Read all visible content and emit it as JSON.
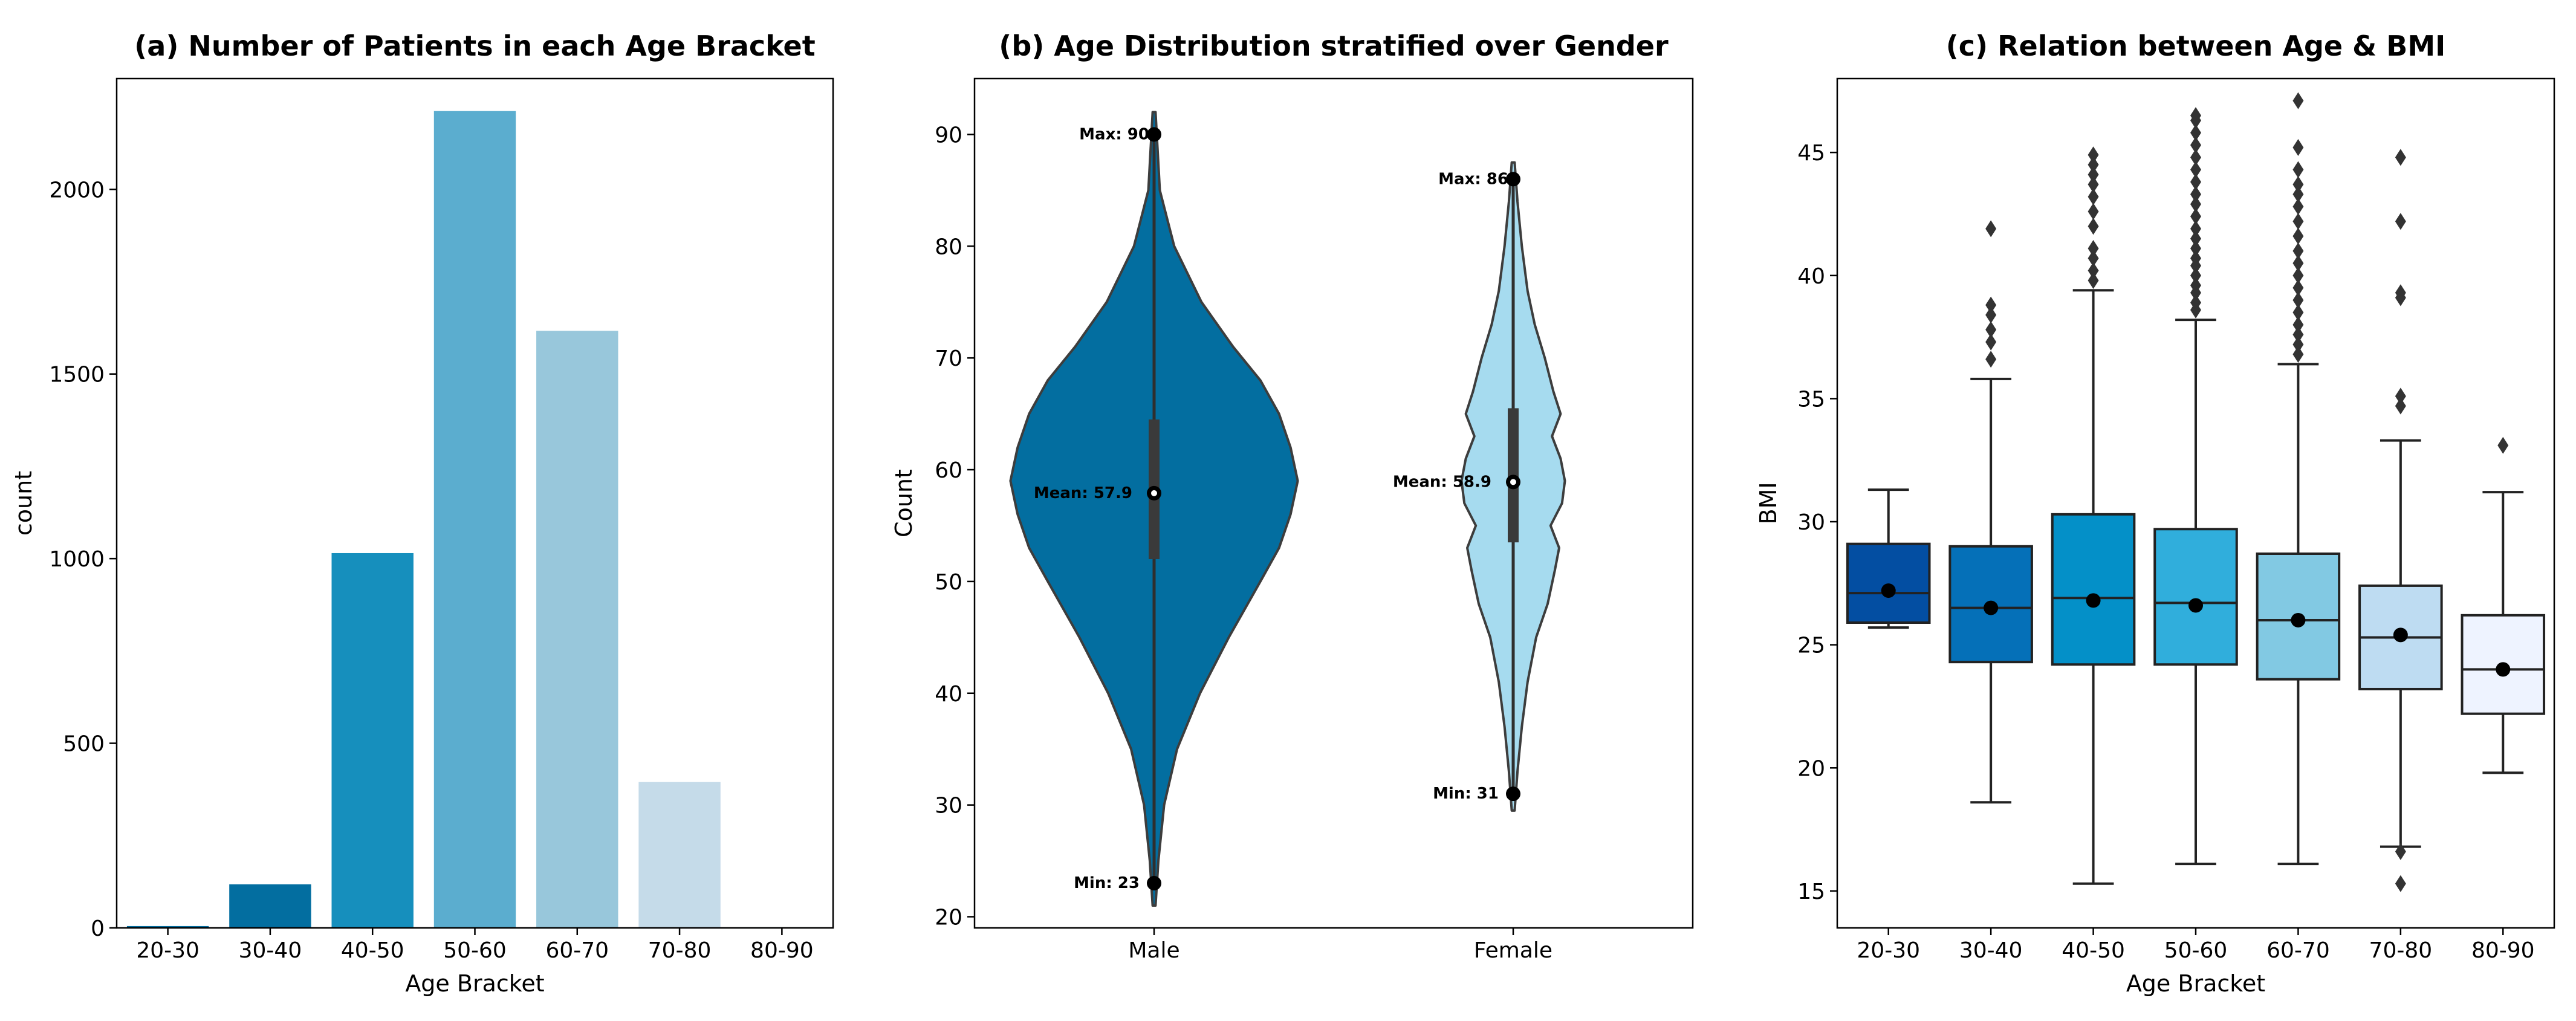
{
  "chart_data": [
    {
      "type": "bar",
      "title": "(a) Number of Patients in each Age Bracket",
      "xlabel": "Age Bracket",
      "ylabel": "count",
      "ylim": [
        0,
        2300
      ],
      "yticks": [
        0,
        500,
        1000,
        1500,
        2000
      ],
      "categories": [
        "20-30",
        "30-40",
        "40-50",
        "50-60",
        "60-70",
        "70-80",
        "80-90"
      ],
      "values": [
        5,
        118,
        1015,
        2212,
        1617,
        395,
        2
      ],
      "colors": [
        "#036ea0",
        "#036ea0",
        "#168fbd",
        "#5badcf",
        "#98c7db",
        "#c5dbe9",
        "#dde9f2"
      ]
    },
    {
      "type": "violin",
      "title": "(b) Age Distribution stratified over Gender",
      "xlabel": "",
      "ylabel": "Count",
      "ylim": [
        19,
        95
      ],
      "yticks": [
        20,
        30,
        40,
        50,
        60,
        70,
        80,
        90
      ],
      "categories": [
        "Male",
        "Female"
      ],
      "colors": [
        "#036ea0",
        "#a6dbef"
      ],
      "series": [
        {
          "name": "Male",
          "min": 23,
          "max": 90,
          "mean": 57.9,
          "median": 58,
          "q1": 52,
          "q3": 64.5,
          "min_label": "Min: 23",
          "max_label": "Max: 90",
          "mean_label": "Mean: 57.9",
          "kde_ages": [
            21,
            25,
            30,
            35,
            40,
            45,
            50,
            53,
            56,
            59,
            62,
            65,
            68,
            71,
            75,
            80,
            85,
            92
          ],
          "kde_width": [
            0.01,
            0.03,
            0.07,
            0.16,
            0.32,
            0.52,
            0.74,
            0.87,
            0.95,
            1.0,
            0.95,
            0.87,
            0.74,
            0.55,
            0.33,
            0.14,
            0.04,
            0.01
          ]
        },
        {
          "name": "Female",
          "min": 31,
          "max": 86,
          "mean": 58.9,
          "median": 59,
          "q1": 53.5,
          "q3": 65.5,
          "min_label": "Min: 31",
          "max_label": "Max: 86",
          "mean_label": "Mean: 58.9",
          "kde_ages": [
            29.5,
            33,
            37,
            41,
            45,
            48,
            51,
            53,
            55,
            57,
            59,
            61,
            63,
            65,
            67,
            70,
            73,
            76,
            80,
            84,
            87.5
          ],
          "kde_width": [
            0.01,
            0.03,
            0.06,
            0.1,
            0.16,
            0.24,
            0.29,
            0.32,
            0.26,
            0.34,
            0.36,
            0.33,
            0.27,
            0.33,
            0.28,
            0.22,
            0.15,
            0.1,
            0.06,
            0.03,
            0.01
          ]
        }
      ]
    },
    {
      "type": "box",
      "title": "(c) Relation between Age & BMI",
      "xlabel": "Age Bracket",
      "ylabel": "BMI",
      "ylim": [
        13.5,
        48
      ],
      "yticks": [
        15,
        20,
        25,
        30,
        35,
        40,
        45
      ],
      "categories": [
        "20-30",
        "30-40",
        "40-50",
        "50-60",
        "60-70",
        "70-80",
        "80-90"
      ],
      "colors": [
        "#034ea2",
        "#0570b8",
        "#0490c8",
        "#30aedc",
        "#82c9e3",
        "#bedcf2",
        "#eef3ff"
      ],
      "series": [
        {
          "name": "20-30",
          "whislo": 25.7,
          "q1": 25.9,
          "med": 27.1,
          "q3": 29.1,
          "whishi": 31.3,
          "mean": 27.2,
          "fliers": []
        },
        {
          "name": "30-40",
          "whislo": 18.6,
          "q1": 24.3,
          "med": 26.5,
          "q3": 29.0,
          "whishi": 35.8,
          "mean": 26.5,
          "fliers": [
            36.6,
            37.3,
            37.8,
            38.4,
            38.8,
            41.9
          ]
        },
        {
          "name": "40-50",
          "whislo": 15.3,
          "q1": 24.2,
          "med": 26.9,
          "q3": 30.3,
          "whishi": 39.4,
          "mean": 26.8,
          "fliers": [
            39.8,
            40.2,
            40.7,
            41.1,
            42.0,
            42.6,
            43.2,
            43.7,
            44.1,
            44.5,
            44.9
          ]
        },
        {
          "name": "50-60",
          "whislo": 16.1,
          "q1": 24.2,
          "med": 26.7,
          "q3": 29.7,
          "whishi": 38.2,
          "mean": 26.6,
          "fliers": [
            38.6,
            38.9,
            39.3,
            39.6,
            40.0,
            40.4,
            40.7,
            41.1,
            41.5,
            41.9,
            42.4,
            42.9,
            43.3,
            43.8,
            44.3,
            44.8,
            45.3,
            45.8,
            46.3,
            46.5
          ]
        },
        {
          "name": "60-70",
          "whislo": 16.1,
          "q1": 23.6,
          "med": 26.0,
          "q3": 28.7,
          "whishi": 36.4,
          "mean": 26.0,
          "fliers": [
            36.8,
            37.2,
            37.6,
            38.0,
            38.5,
            39.0,
            39.5,
            40.0,
            40.5,
            41.0,
            41.6,
            42.2,
            42.8,
            43.3,
            43.7,
            44.3,
            45.2,
            47.1
          ]
        },
        {
          "name": "70-80",
          "whislo": 16.8,
          "q1": 23.2,
          "med": 25.3,
          "q3": 27.4,
          "whishi": 33.3,
          "mean": 25.4,
          "fliers": [
            15.3,
            16.6,
            34.7,
            35.1,
            39.1,
            39.3,
            42.2,
            44.8
          ]
        },
        {
          "name": "80-90",
          "whislo": 19.8,
          "q1": 22.2,
          "med": 24.0,
          "q3": 26.2,
          "whishi": 31.2,
          "mean": 24.0,
          "fliers": [
            33.1
          ]
        }
      ]
    }
  ]
}
